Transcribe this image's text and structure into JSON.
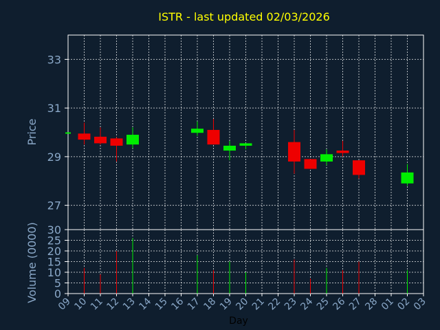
{
  "colors": {
    "background": "#0f1e2e",
    "grid": "#ffffff",
    "axis": "#ffffff",
    "up": "#00ee00",
    "down": "#ee0000",
    "title": "#ffff00",
    "text": "#8aa8c8"
  },
  "chart_data": [
    {
      "type": "candlestick",
      "title": "ISTR - last updated 02/03/2026",
      "ylabel": "Price",
      "xlabel": "",
      "ylim": [
        26,
        34
      ],
      "yticks": [
        27,
        29,
        31,
        33
      ],
      "grid": true,
      "x_ticks": [
        "09",
        "10",
        "11",
        "12",
        "13",
        "14",
        "15",
        "16",
        "17",
        "18",
        "19",
        "20",
        "21",
        "22",
        "23",
        "24",
        "25",
        "26",
        "27",
        "28",
        "01",
        "02",
        "03"
      ],
      "candles": [
        {
          "x": "09",
          "open": 29.98,
          "close": 30.0,
          "high": 30.0,
          "low": 29.98
        },
        {
          "x": "10",
          "open": 29.95,
          "close": 29.7,
          "high": 30.4,
          "low": 29.5
        },
        {
          "x": "11",
          "open": 29.82,
          "close": 29.55,
          "high": 30.2,
          "low": 29.5
        },
        {
          "x": "12",
          "open": 29.75,
          "close": 29.45,
          "high": 29.8,
          "low": 28.8
        },
        {
          "x": "13",
          "open": 29.5,
          "close": 29.9,
          "high": 30.2,
          "low": 29.35
        },
        {
          "x": "17",
          "open": 29.98,
          "close": 30.15,
          "high": 30.45,
          "low": 29.85
        },
        {
          "x": "18",
          "open": 30.1,
          "close": 29.5,
          "high": 30.55,
          "low": 29.5
        },
        {
          "x": "19",
          "open": 29.25,
          "close": 29.45,
          "high": 29.65,
          "low": 28.85
        },
        {
          "x": "20",
          "open": 29.45,
          "close": 29.55,
          "high": 29.55,
          "low": 29.3
        },
        {
          "x": "23",
          "open": 29.6,
          "close": 28.8,
          "high": 30.1,
          "low": 28.3
        },
        {
          "x": "24",
          "open": 28.9,
          "close": 28.5,
          "high": 28.9,
          "low": 28.5
        },
        {
          "x": "25",
          "open": 28.8,
          "close": 29.1,
          "high": 29.3,
          "low": 28.65
        },
        {
          "x": "26",
          "open": 29.25,
          "close": 29.15,
          "high": 29.65,
          "low": 29.0
        },
        {
          "x": "27",
          "open": 28.85,
          "close": 28.25,
          "high": 28.85,
          "low": 28.1
        },
        {
          "x": "02",
          "open": 27.9,
          "close": 28.35,
          "high": 28.7,
          "low": 27.8
        }
      ]
    },
    {
      "type": "bar",
      "ylabel": "Volume (0000)",
      "xlabel": "Day",
      "ylim": [
        0,
        30
      ],
      "yticks": [
        0,
        5,
        10,
        15,
        20,
        25,
        30
      ],
      "grid": true,
      "categories": [
        "09",
        "10",
        "11",
        "12",
        "13",
        "17",
        "18",
        "19",
        "20",
        "23",
        "24",
        "25",
        "26",
        "27",
        "02"
      ],
      "values": [
        0,
        12,
        9,
        20,
        26,
        18,
        11,
        15,
        10,
        16,
        7,
        12,
        11,
        15,
        11
      ]
    }
  ]
}
